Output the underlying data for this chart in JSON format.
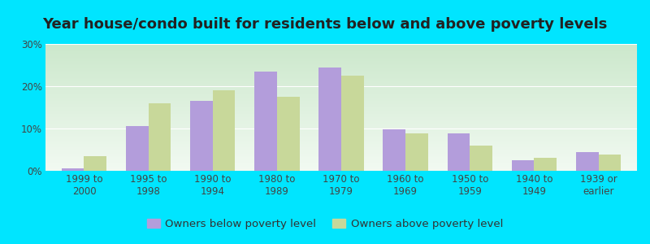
{
  "title": "Year house/condo built for residents below and above poverty levels",
  "categories": [
    "1999 to\n2000",
    "1995 to\n1998",
    "1990 to\n1994",
    "1980 to\n1989",
    "1970 to\n1979",
    "1960 to\n1969",
    "1950 to\n1959",
    "1940 to\n1949",
    "1939 or\nearlier"
  ],
  "below_poverty": [
    0.5,
    10.5,
    16.5,
    23.5,
    24.5,
    9.8,
    8.8,
    2.5,
    4.5
  ],
  "above_poverty": [
    3.5,
    16.0,
    19.0,
    17.5,
    22.5,
    8.8,
    6.0,
    3.0,
    3.8
  ],
  "below_color": "#b39ddb",
  "above_color": "#c8d89a",
  "outer_bg": "#00e5ff",
  "grad_top": "#cce8cc",
  "grad_bottom": "#f2faf2",
  "ylim": [
    0,
    30
  ],
  "yticks": [
    0,
    10,
    20,
    30
  ],
  "ytick_labels": [
    "0%",
    "10%",
    "20%",
    "30%"
  ],
  "legend_below": "Owners below poverty level",
  "legend_above": "Owners above poverty level",
  "title_fontsize": 13,
  "tick_fontsize": 8.5,
  "legend_fontsize": 9.5
}
